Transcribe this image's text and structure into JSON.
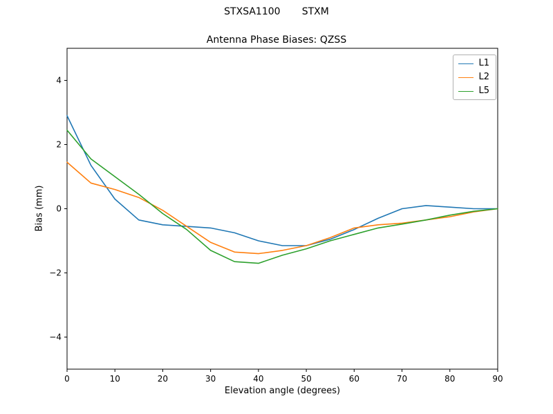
{
  "figure": {
    "suptitle": "STXSA1100       STXM",
    "title": "Antenna Phase Biases: QZSS"
  },
  "chart_data": {
    "type": "line",
    "suptitle": "STXSA1100       STXM",
    "title": "Antenna Phase Biases: QZSS",
    "xlabel": "Elevation angle (degrees)",
    "ylabel": "Bias (mm)",
    "xlim": [
      0,
      90
    ],
    "ylim": [
      -5,
      5
    ],
    "xticks": [
      0,
      10,
      20,
      30,
      40,
      50,
      60,
      70,
      80,
      90
    ],
    "yticks": [
      -4,
      -2,
      0,
      2,
      4
    ],
    "grid": false,
    "legend_position": "upper right",
    "x": [
      0,
      5,
      10,
      15,
      20,
      25,
      30,
      35,
      40,
      45,
      50,
      55,
      60,
      65,
      70,
      75,
      80,
      85,
      90
    ],
    "series": [
      {
        "name": "L1",
        "color": "#1f77b4",
        "values": [
          2.9,
          1.35,
          0.3,
          -0.35,
          -0.5,
          -0.55,
          -0.6,
          -0.75,
          -1.0,
          -1.15,
          -1.15,
          -0.95,
          -0.65,
          -0.3,
          0.0,
          0.1,
          0.05,
          0.0,
          0.0
        ]
      },
      {
        "name": "L2",
        "color": "#ff7f0e",
        "values": [
          1.45,
          0.8,
          0.6,
          0.35,
          -0.05,
          -0.55,
          -1.05,
          -1.35,
          -1.4,
          -1.3,
          -1.15,
          -0.9,
          -0.6,
          -0.5,
          -0.45,
          -0.35,
          -0.25,
          -0.1,
          0.0
        ]
      },
      {
        "name": "L5",
        "color": "#2ca02c",
        "values": [
          2.45,
          1.55,
          1.0,
          0.45,
          -0.15,
          -0.65,
          -1.3,
          -1.65,
          -1.7,
          -1.45,
          -1.25,
          -1.0,
          -0.8,
          -0.6,
          -0.48,
          -0.35,
          -0.2,
          -0.08,
          0.0
        ]
      }
    ]
  }
}
